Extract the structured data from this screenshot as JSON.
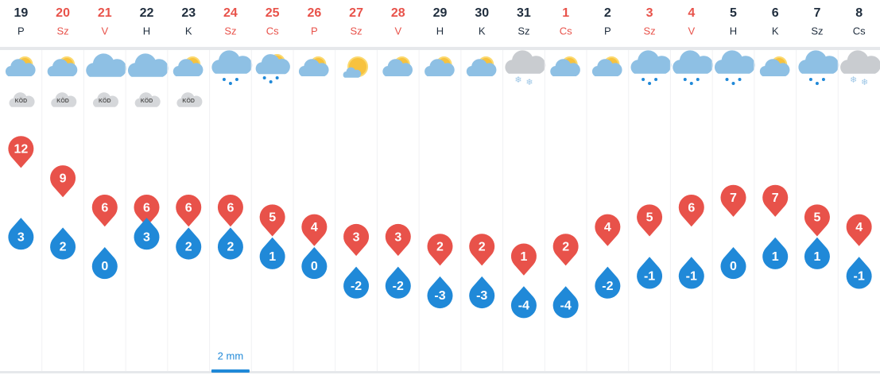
{
  "days": [
    {
      "day": "19",
      "weekday": "P",
      "highlight": false,
      "icon": "partly-cloudy",
      "fog": "KÖD",
      "max": 12,
      "min": 3,
      "precipitation": null
    },
    {
      "day": "20",
      "weekday": "Sz",
      "highlight": true,
      "icon": "partly-cloudy",
      "fog": "KÖD",
      "max": 9,
      "min": 2,
      "precipitation": null
    },
    {
      "day": "21",
      "weekday": "V",
      "highlight": true,
      "icon": "cloudy",
      "fog": "KÖD",
      "max": 6,
      "min": 0,
      "precipitation": null
    },
    {
      "day": "22",
      "weekday": "H",
      "highlight": false,
      "icon": "cloudy",
      "fog": "KÖD",
      "max": 6,
      "min": 3,
      "precipitation": null
    },
    {
      "day": "23",
      "weekday": "K",
      "highlight": false,
      "icon": "partly-cloudy",
      "fog": "KÖD",
      "max": 6,
      "min": 2,
      "precipitation": null
    },
    {
      "day": "24",
      "weekday": "Sz",
      "highlight": true,
      "icon": "rain",
      "fog": null,
      "max": 6,
      "min": 2,
      "precipitation": {
        "value": 2,
        "label": "2 mm"
      }
    },
    {
      "day": "25",
      "weekday": "Cs",
      "highlight": true,
      "icon": "partly-cloudy-rain",
      "fog": null,
      "max": 5,
      "min": 1,
      "precipitation": null
    },
    {
      "day": "26",
      "weekday": "P",
      "highlight": true,
      "icon": "partly-cloudy",
      "fog": null,
      "max": 4,
      "min": 0,
      "precipitation": null
    },
    {
      "day": "27",
      "weekday": "Sz",
      "highlight": true,
      "icon": "sunny",
      "fog": null,
      "max": 3,
      "min": -2,
      "precipitation": null
    },
    {
      "day": "28",
      "weekday": "V",
      "highlight": true,
      "icon": "partly-cloudy",
      "fog": null,
      "max": 3,
      "min": -2,
      "precipitation": null
    },
    {
      "day": "29",
      "weekday": "H",
      "highlight": false,
      "icon": "partly-cloudy",
      "fog": null,
      "max": 2,
      "min": -3,
      "precipitation": null
    },
    {
      "day": "30",
      "weekday": "K",
      "highlight": false,
      "icon": "partly-cloudy",
      "fog": null,
      "max": 2,
      "min": -3,
      "precipitation": null
    },
    {
      "day": "31",
      "weekday": "Sz",
      "highlight": false,
      "icon": "snow",
      "fog": null,
      "max": 1,
      "min": -4,
      "precipitation": null
    },
    {
      "day": "1",
      "weekday": "Cs",
      "highlight": true,
      "icon": "partly-cloudy",
      "fog": null,
      "max": 2,
      "min": -4,
      "precipitation": null
    },
    {
      "day": "2",
      "weekday": "P",
      "highlight": false,
      "icon": "partly-cloudy",
      "fog": null,
      "max": 4,
      "min": -2,
      "precipitation": null
    },
    {
      "day": "3",
      "weekday": "Sz",
      "highlight": true,
      "icon": "rain",
      "fog": null,
      "max": 5,
      "min": -1,
      "precipitation": null
    },
    {
      "day": "4",
      "weekday": "V",
      "highlight": true,
      "icon": "rain",
      "fog": null,
      "max": 6,
      "min": -1,
      "precipitation": null
    },
    {
      "day": "5",
      "weekday": "H",
      "highlight": false,
      "icon": "rain",
      "fog": null,
      "max": 7,
      "min": 0,
      "precipitation": null
    },
    {
      "day": "6",
      "weekday": "K",
      "highlight": false,
      "icon": "partly-cloudy",
      "fog": null,
      "max": 7,
      "min": 1,
      "precipitation": null
    },
    {
      "day": "7",
      "weekday": "Sz",
      "highlight": false,
      "icon": "rain",
      "fog": null,
      "max": 5,
      "min": 1,
      "precipitation": null
    },
    {
      "day": "8",
      "weekday": "Cs",
      "highlight": false,
      "icon": "snow",
      "fog": null,
      "max": 4,
      "min": -1,
      "precipitation": null
    }
  ]
}
